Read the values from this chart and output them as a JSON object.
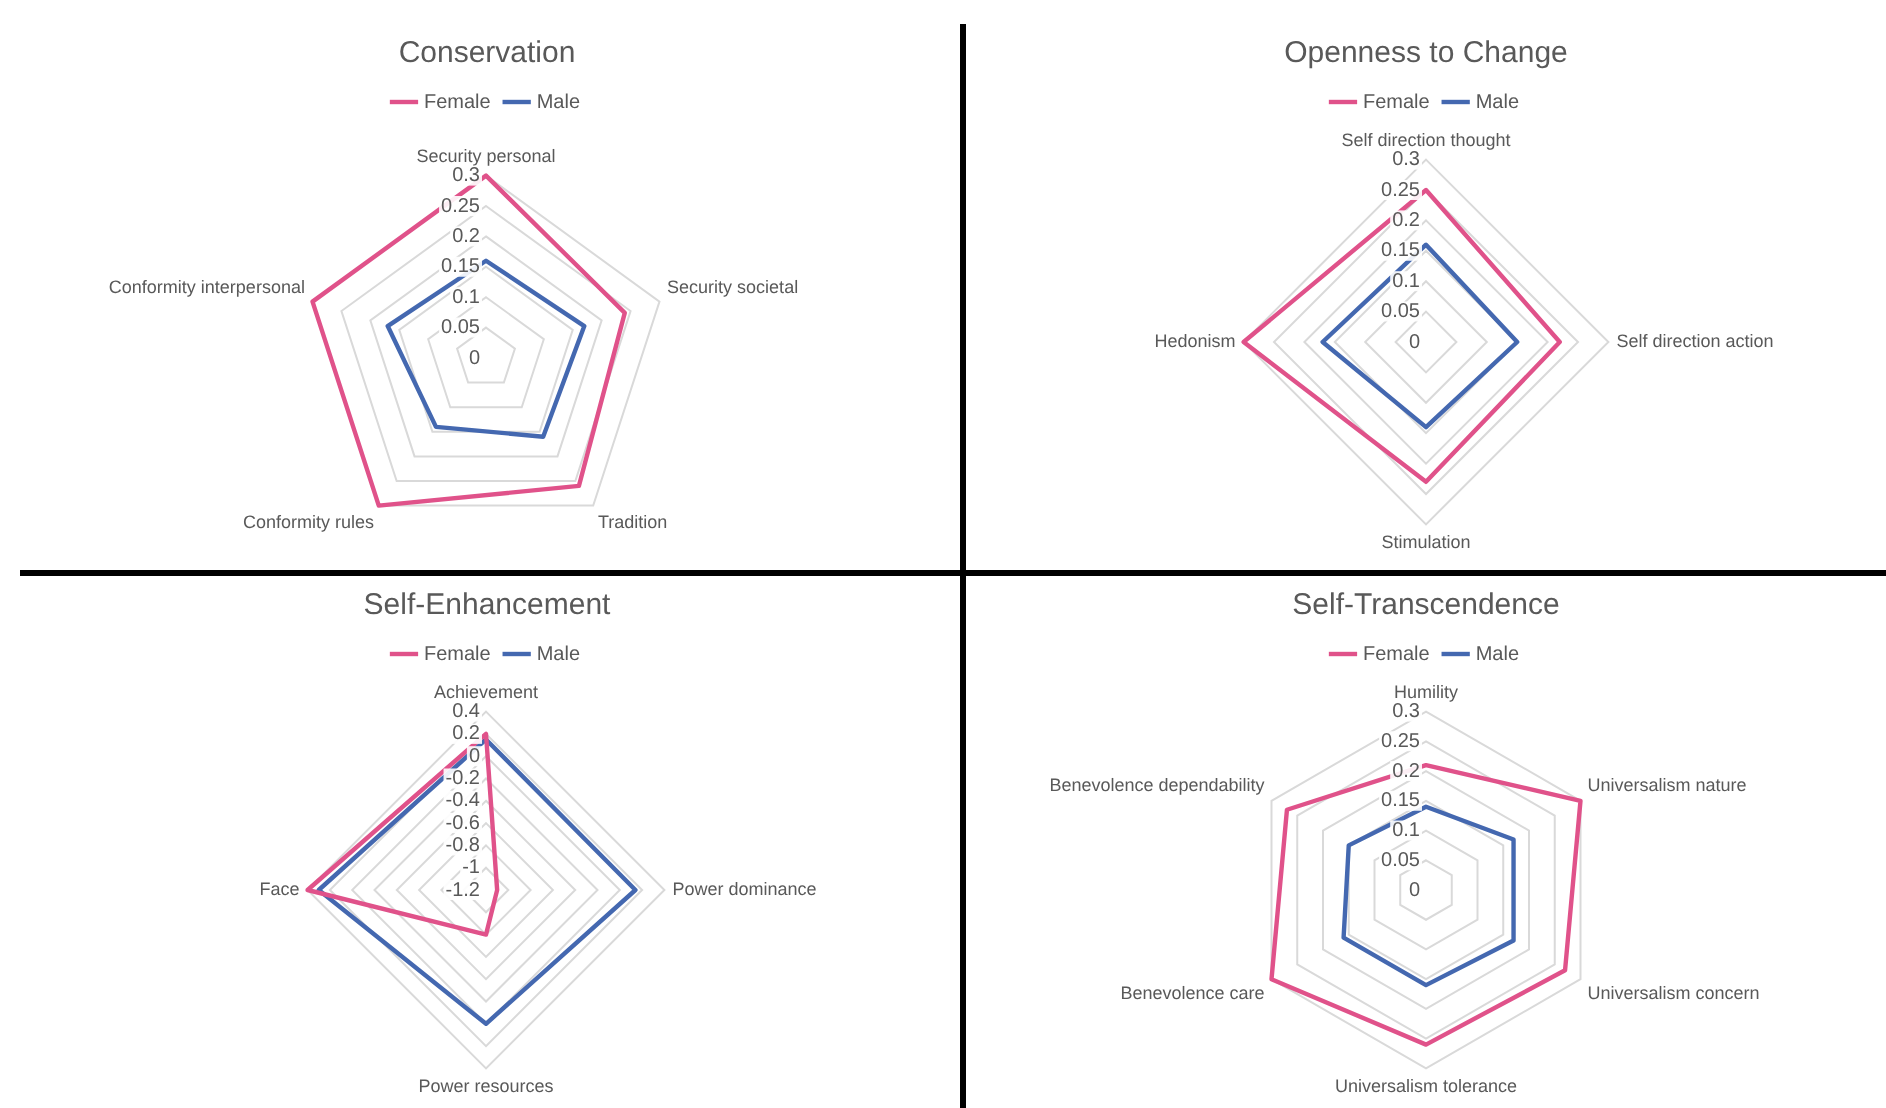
{
  "chart_data": [
    {
      "type": "radar",
      "title": "Conservation",
      "categories": [
        "Security personal",
        "Security societal",
        "Tradition",
        "Conformity rules",
        "Conformity interpersonal"
      ],
      "ylim": [
        0,
        0.3
      ],
      "yticks": [
        0,
        0.05,
        0.1,
        0.15,
        0.2,
        0.25,
        0.3
      ],
      "grid": true,
      "legend": "top",
      "marker": "none",
      "series": [
        {
          "name": "Female",
          "color": "#e0528a",
          "values": [
            0.3,
            0.24,
            0.26,
            0.3,
            0.3
          ]
        },
        {
          "name": "Male",
          "color": "#4468b0",
          "values": [
            0.16,
            0.17,
            0.16,
            0.14,
            0.17
          ]
        }
      ]
    },
    {
      "type": "radar",
      "title": "Openness to Change",
      "categories": [
        "Self direction thought",
        "Self direction action",
        "Stimulation",
        "Hedonism"
      ],
      "ylim": [
        0,
        0.3
      ],
      "yticks": [
        0,
        0.05,
        0.1,
        0.15,
        0.2,
        0.25,
        0.3
      ],
      "grid": true,
      "legend": "top",
      "marker": "none",
      "series": [
        {
          "name": "Female",
          "color": "#e0528a",
          "values": [
            0.25,
            0.22,
            0.23,
            0.3
          ]
        },
        {
          "name": "Male",
          "color": "#4468b0",
          "values": [
            0.16,
            0.15,
            0.14,
            0.17
          ]
        }
      ]
    },
    {
      "type": "radar",
      "title": "Self-Enhancement",
      "categories": [
        "Achievement",
        "Power dominance",
        "Power resources",
        "Face"
      ],
      "ylim": [
        -1.2,
        0.4
      ],
      "yticks": [
        -1.2,
        -1,
        -0.8,
        -0.6,
        -0.4,
        -0.2,
        0,
        0.2,
        0.4
      ],
      "grid": true,
      "legend": "top",
      "marker": "none",
      "series": [
        {
          "name": "Female",
          "color": "#e0528a",
          "values": [
            0.2,
            -1.1,
            -0.8,
            0.4
          ]
        },
        {
          "name": "Male",
          "color": "#4468b0",
          "values": [
            0.15,
            0.14,
            0,
            0.3
          ]
        }
      ]
    },
    {
      "type": "radar",
      "title": "Self-Transcendence",
      "categories": [
        "Humility",
        "Universalism nature",
        "Universalism concern",
        "Universalism tolerance",
        "Benevolence care",
        "Benevolence dependability"
      ],
      "ylim": [
        0,
        0.3
      ],
      "yticks": [
        0,
        0.05,
        0.1,
        0.15,
        0.2,
        0.25,
        0.3
      ],
      "grid": true,
      "legend": "top",
      "marker": "none",
      "series": [
        {
          "name": "Female",
          "color": "#e0528a",
          "values": [
            0.21,
            0.3,
            0.27,
            0.26,
            0.3,
            0.27
          ]
        },
        {
          "name": "Male",
          "color": "#4468b0",
          "values": [
            0.14,
            0.17,
            0.17,
            0.16,
            0.16,
            0.15
          ]
        }
      ]
    }
  ]
}
